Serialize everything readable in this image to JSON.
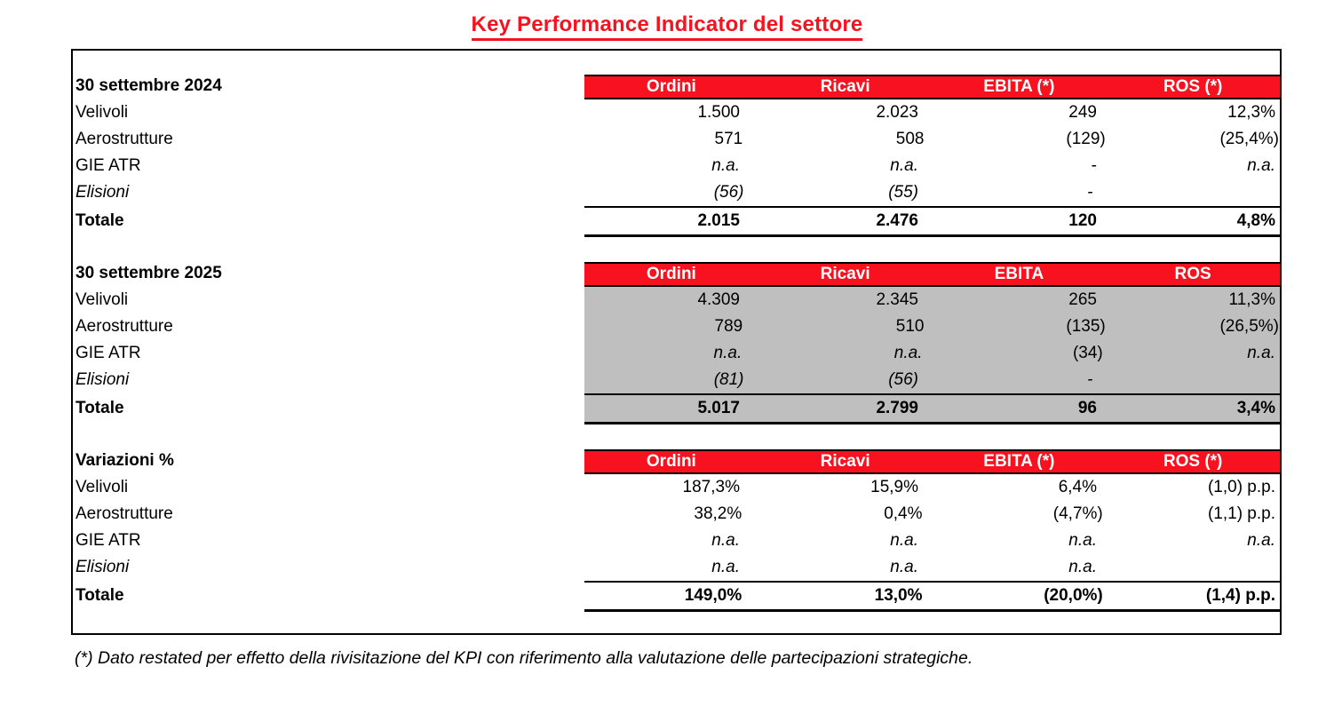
{
  "title": "Key Performance Indicator del settore",
  "footnote": "(*) Dato restated per effetto della rivisitazione del KPI con riferimento alla valutazione delle partecipazioni strategiche.",
  "colors": {
    "header_red": "#F8111E",
    "shaded_gray": "#BFBFBF"
  },
  "sections": [
    {
      "label": "30 settembre 2024",
      "shaded": false,
      "columns": [
        "Ordini",
        "Ricavi",
        "EBITA (*)",
        "ROS (*)"
      ],
      "rows": [
        {
          "label": "Velivoli",
          "italic_label": false,
          "values": [
            "1.500",
            "2.023",
            "249",
            "12,3%"
          ],
          "italic_values": [
            false,
            false,
            false,
            false
          ]
        },
        {
          "label": "Aerostrutture",
          "italic_label": false,
          "values": [
            "571",
            "508",
            "(129)",
            "(25,4%)"
          ],
          "italic_values": [
            false,
            false,
            false,
            false
          ]
        },
        {
          "label": "GIE ATR",
          "italic_label": false,
          "values": [
            "n.a.",
            "n.a.",
            "-",
            "n.a."
          ],
          "italic_values": [
            true,
            true,
            false,
            true
          ]
        },
        {
          "label": "Elisioni",
          "italic_label": true,
          "values": [
            "(56)",
            "(55)",
            "-",
            ""
          ],
          "italic_values": [
            true,
            true,
            true,
            false
          ]
        }
      ],
      "total": {
        "label": "Totale",
        "values": [
          "2.015",
          "2.476",
          "120",
          "4,8%"
        ]
      }
    },
    {
      "label": "30 settembre 2025",
      "shaded": true,
      "columns": [
        "Ordini",
        "Ricavi",
        "EBITA",
        "ROS"
      ],
      "rows": [
        {
          "label": "Velivoli",
          "italic_label": false,
          "values": [
            "4.309",
            "2.345",
            "265",
            "11,3%"
          ],
          "italic_values": [
            false,
            false,
            false,
            false
          ]
        },
        {
          "label": "Aerostrutture",
          "italic_label": false,
          "values": [
            "789",
            "510",
            "(135)",
            "(26,5%)"
          ],
          "italic_values": [
            false,
            false,
            false,
            false
          ]
        },
        {
          "label": "GIE ATR",
          "italic_label": false,
          "values": [
            "n.a.",
            "n.a.",
            "(34)",
            "n.a."
          ],
          "italic_values": [
            true,
            true,
            false,
            true
          ]
        },
        {
          "label": "Elisioni",
          "italic_label": true,
          "values": [
            "(81)",
            "(56)",
            "-",
            ""
          ],
          "italic_values": [
            true,
            true,
            true,
            false
          ]
        }
      ],
      "total": {
        "label": "Totale",
        "values": [
          "5.017",
          "2.799",
          "96",
          "3,4%"
        ]
      }
    },
    {
      "label": "Variazioni %",
      "shaded": false,
      "columns": [
        "Ordini",
        "Ricavi",
        "EBITA (*)",
        "ROS (*)"
      ],
      "rows": [
        {
          "label": "Velivoli",
          "italic_label": false,
          "values": [
            "187,3%",
            "15,9%",
            "6,4%",
            "(1,0) p.p."
          ],
          "italic_values": [
            false,
            false,
            false,
            false
          ]
        },
        {
          "label": "Aerostrutture",
          "italic_label": false,
          "values": [
            "38,2%",
            "0,4%",
            "(4,7%)",
            "(1,1) p.p."
          ],
          "italic_values": [
            false,
            false,
            false,
            false
          ]
        },
        {
          "label": "GIE ATR",
          "italic_label": false,
          "values": [
            "n.a.",
            "n.a.",
            "n.a.",
            "n.a."
          ],
          "italic_values": [
            true,
            true,
            true,
            true
          ]
        },
        {
          "label": "Elisioni",
          "italic_label": true,
          "values": [
            "n.a.",
            "n.a.",
            "n.a.",
            ""
          ],
          "italic_values": [
            true,
            true,
            true,
            false
          ]
        }
      ],
      "total": {
        "label": "Totale",
        "values": [
          "149,0%",
          "13,0%",
          "(20,0%)",
          "(1,4) p.p."
        ]
      }
    }
  ]
}
